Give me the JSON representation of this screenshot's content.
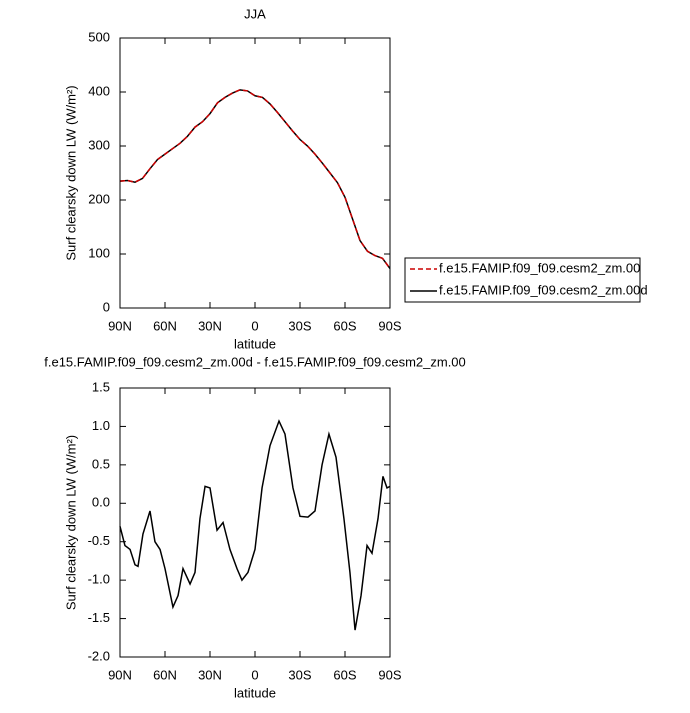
{
  "chart_data": [
    {
      "type": "line",
      "title": "JJA",
      "xlabel": "latitude",
      "ylabel": "Surf clearsky down LW (W/m²)",
      "x": [
        90,
        85,
        80,
        75,
        70,
        65,
        60,
        55,
        50,
        45,
        40,
        35,
        30,
        25,
        20,
        15,
        10,
        5,
        0,
        -5,
        -10,
        -15,
        -20,
        -25,
        -30,
        -35,
        -40,
        -45,
        -50,
        -55,
        -60,
        -65,
        -70,
        -75,
        -80,
        -85,
        -90
      ],
      "series": [
        {
          "name": "f.e15.FAMIP.f09_f09.cesm2_zm.00",
          "color": "#cc0000",
          "dashed": true,
          "values": [
            235,
            236,
            233,
            240,
            258,
            275,
            285,
            295,
            305,
            318,
            335,
            345,
            360,
            380,
            390,
            398,
            404,
            402,
            393,
            390,
            378,
            362,
            345,
            328,
            312,
            300,
            285,
            268,
            250,
            232,
            205,
            165,
            125,
            105,
            97,
            92,
            73
          ]
        },
        {
          "name": "f.e15.FAMIP.f09_f09.cesm2_zm.00d",
          "color": "#000000",
          "dashed": false,
          "values": [
            235,
            236,
            233,
            240,
            258,
            275,
            285,
            295,
            305,
            318,
            335,
            345,
            360,
            380,
            390,
            398,
            404,
            402,
            393,
            390,
            378,
            362,
            345,
            328,
            312,
            300,
            285,
            268,
            250,
            232,
            205,
            165,
            125,
            105,
            97,
            92,
            73
          ]
        }
      ],
      "xlim": [
        90,
        -90
      ],
      "xticks": [
        {
          "value": 90,
          "label": "90N"
        },
        {
          "value": 60,
          "label": "60N"
        },
        {
          "value": 30,
          "label": "30N"
        },
        0,
        {
          "value": -30,
          "label": "30S"
        },
        {
          "value": -60,
          "label": "60S"
        },
        {
          "value": -90,
          "label": "90S"
        }
      ],
      "ylim": [
        0,
        500
      ],
      "yticks": [
        0,
        100,
        200,
        300,
        400,
        500
      ],
      "legend": "right"
    },
    {
      "type": "line",
      "title": "f.e15.FAMIP.f09_f09.cesm2_zm.00d - f.e15.FAMIP.f09_f09.cesm2_zm.00",
      "xlabel": "latitude",
      "ylabel": "Surf clearsky down LW (W/m²)",
      "x": [
        90,
        86.7,
        83.3,
        80,
        78,
        74.7,
        70,
        66.7,
        63.3,
        60,
        54.7,
        51.3,
        48,
        43.3,
        40,
        36.7,
        33.3,
        30,
        25.3,
        21.3,
        16.7,
        12,
        8.7,
        4.7,
        0,
        -4.7,
        -10,
        -16,
        -20,
        -25.3,
        -30,
        -35.3,
        -40,
        -44.7,
        -49.3,
        -54,
        -59.3,
        -63.3,
        -66.7,
        -70.7,
        -74.7,
        -78,
        -82,
        -85.3,
        -88,
        -90
      ],
      "series": [
        {
          "color": "#000000",
          "dashed": false,
          "values": [
            -0.3,
            -0.55,
            -0.6,
            -0.8,
            -0.82,
            -0.4,
            -0.1,
            -0.5,
            -0.6,
            -0.85,
            -1.35,
            -1.2,
            -0.85,
            -1.05,
            -0.9,
            -0.2,
            0.22,
            0.2,
            -0.35,
            -0.25,
            -0.6,
            -0.85,
            -1.0,
            -0.9,
            -0.6,
            0.2,
            0.75,
            1.07,
            0.9,
            0.2,
            -0.17,
            -0.18,
            -0.1,
            0.5,
            0.9,
            0.6,
            -0.2,
            -0.9,
            -1.65,
            -1.2,
            -0.55,
            -0.65,
            -0.2,
            0.35,
            0.2,
            0.22
          ]
        }
      ],
      "xlim": [
        90,
        -90
      ],
      "xticks": [
        {
          "value": 90,
          "label": "90N"
        },
        {
          "value": 60,
          "label": "60N"
        },
        {
          "value": 30,
          "label": "30N"
        },
        0,
        {
          "value": -30,
          "label": "30S"
        },
        {
          "value": -60,
          "label": "60S"
        },
        {
          "value": -90,
          "label": "90S"
        }
      ],
      "ylim": [
        -2,
        1.5
      ],
      "yticks": [
        {
          "value": -2,
          "label": "-2.0"
        },
        {
          "value": -1.5,
          "label": "-1.5"
        },
        {
          "value": -1,
          "label": "-1.0"
        },
        {
          "value": -0.5,
          "label": "-0.5"
        },
        {
          "value": 0,
          "label": "0.0"
        },
        {
          "value": 0.5,
          "label": "0.5"
        },
        {
          "value": 1,
          "label": "1.0"
        },
        {
          "value": 1.5,
          "label": "1.5"
        }
      ]
    }
  ]
}
